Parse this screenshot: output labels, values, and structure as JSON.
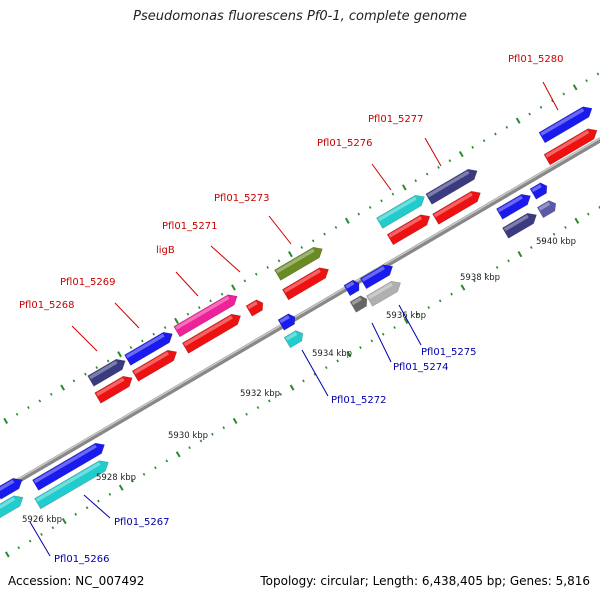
{
  "title": "Pseudomonas fluorescens Pf0-1, complete genome",
  "footer": {
    "accession": "Accession: NC_007492",
    "summary": "Topology: circular; Length: 6,438,405 bp; Genes: 5,816"
  },
  "colors": {
    "backbone": "#888888",
    "tick": "#2a8a2a",
    "label_forward": "#cc0000",
    "label_reverse": "#0000aa",
    "blue": "#1a1aee",
    "red": "#ee1111",
    "cyan": "#22cccc",
    "magenta": "#ee2299",
    "olive": "#6a8a22",
    "navy": "#3a3a80",
    "slate": "#5a5aa8",
    "gray": "#666666",
    "silver": "#b0b0b0"
  },
  "ticks": [
    {
      "label": "5926 kbp"
    },
    {
      "label": "5928 kbp"
    },
    {
      "label": "5930 kbp"
    },
    {
      "label": "5932 kbp"
    },
    {
      "label": "5934 kbp"
    },
    {
      "label": "5936 kbp"
    },
    {
      "label": "5938 kbp"
    },
    {
      "label": "5940 kbp"
    }
  ],
  "gene_labels": [
    {
      "name": "Pfl01_5280",
      "strand": "forward"
    },
    {
      "name": "Pfl01_5277",
      "strand": "forward"
    },
    {
      "name": "Pfl01_5276",
      "strand": "forward"
    },
    {
      "name": "Pfl01_5273",
      "strand": "forward"
    },
    {
      "name": "Pfl01_5271",
      "strand": "forward"
    },
    {
      "name": "ligB",
      "strand": "forward"
    },
    {
      "name": "Pfl01_5269",
      "strand": "forward"
    },
    {
      "name": "Pfl01_5268",
      "strand": "forward"
    },
    {
      "name": "Pfl01_5275",
      "strand": "reverse"
    },
    {
      "name": "Pfl01_5274",
      "strand": "reverse"
    },
    {
      "name": "Pfl01_5272",
      "strand": "reverse"
    },
    {
      "name": "Pfl01_5267",
      "strand": "reverse"
    },
    {
      "name": "Pfl01_5266",
      "strand": "reverse"
    }
  ]
}
